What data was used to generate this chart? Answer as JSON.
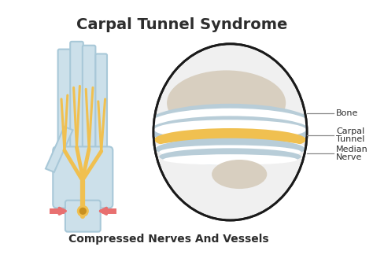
{
  "title": "Carpal Tunnel Syndrome",
  "subtitle": "Compressed Nerves And Vessels",
  "bg_color": "#ffffff",
  "title_color": "#2d2d2d",
  "subtitle_color": "#2d2d2d",
  "hand_outline_color": "#a8c8d8",
  "hand_fill_color": "#cce0ea",
  "nerve_color": "#f0c050",
  "bone_color": "#d8cfc0",
  "ligament_color": "#b8cdd8",
  "arrow_color": "#e87070",
  "label_line_color": "#888888"
}
